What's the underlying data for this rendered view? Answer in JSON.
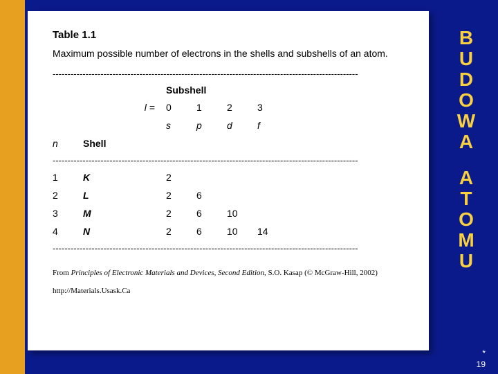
{
  "colors": {
    "background": "#0a1a8a",
    "gold_bar": "#e8a020",
    "panel": "#ffffff",
    "side_text": "#f8d040",
    "footer_text": "#ffffff",
    "body_text": "#000000"
  },
  "side_title": {
    "word1": [
      "B",
      "U",
      "D",
      "O",
      "W",
      "A"
    ],
    "word2": [
      "A",
      "T",
      "O",
      "M",
      "U"
    ]
  },
  "footer": {
    "star": "*",
    "page": "19"
  },
  "table": {
    "label": "Table 1.1",
    "caption": "Maximum possible number of electrons in the shells and subshells of an atom.",
    "dash_line": "------------------------------------------------------------------------------------------------------",
    "subshell_header": "Subshell",
    "l_prefix": "l",
    "l_equals": "=",
    "l_values": [
      "0",
      "1",
      "2",
      "3"
    ],
    "orbital_labels": [
      "s",
      "p",
      "d",
      "f"
    ],
    "n_header": "n",
    "shell_header": "Shell",
    "rows": [
      {
        "n": "1",
        "shell": "K",
        "vals": [
          "2",
          "",
          "",
          ""
        ]
      },
      {
        "n": "2",
        "shell": "L",
        "vals": [
          "2",
          "6",
          "",
          ""
        ]
      },
      {
        "n": "3",
        "shell": "M",
        "vals": [
          "2",
          "6",
          "10",
          ""
        ]
      },
      {
        "n": "4",
        "shell": "N",
        "vals": [
          "2",
          "6",
          "10",
          "14"
        ]
      }
    ]
  },
  "source": {
    "prefix": "From ",
    "book": "Principles of Electronic Materials and Devices, Second Edition",
    "suffix": ", S.O. Kasap (© McGraw-Hill, 2002)",
    "url": "http://Materials.Usask.Ca"
  }
}
